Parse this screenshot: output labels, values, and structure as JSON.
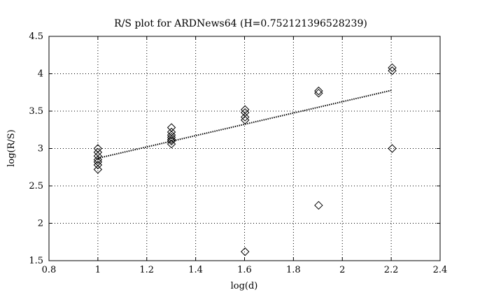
{
  "chart_data": {
    "type": "scatter",
    "title": "R/S plot for ARDNews64 (H=0.752121396528239)",
    "xlabel": "log(d)",
    "ylabel": "log(R/S)",
    "xlim": [
      0.8,
      2.4
    ],
    "ylim": [
      1.5,
      4.5
    ],
    "x_ticks": [
      0.8,
      1,
      1.2,
      1.4,
      1.6,
      1.8,
      2,
      2.2,
      2.4
    ],
    "x_tick_labels": [
      "0.8",
      "1",
      "1.2",
      "1.4",
      "1.6",
      "1.8",
      "2",
      "2.2",
      "2.4"
    ],
    "y_ticks": [
      1.5,
      2,
      2.5,
      3,
      3.5,
      4,
      4.5
    ],
    "y_tick_labels": [
      "1.5",
      "2",
      "2.5",
      "3",
      "3.5",
      "4",
      "4.5"
    ],
    "grid": true,
    "grid_style": "dotted",
    "marker": "diamond",
    "series": [
      {
        "kind": "scatter",
        "points": [
          [
            1.0,
            3.0
          ],
          [
            1.0,
            2.95
          ],
          [
            1.0,
            2.9
          ],
          [
            1.0,
            2.85
          ],
          [
            1.0,
            2.82
          ],
          [
            1.0,
            2.78
          ],
          [
            1.0,
            2.72
          ],
          [
            1.301,
            3.28
          ],
          [
            1.301,
            3.22
          ],
          [
            1.301,
            3.18
          ],
          [
            1.301,
            3.15
          ],
          [
            1.301,
            3.12
          ],
          [
            1.301,
            3.1
          ],
          [
            1.301,
            3.06
          ],
          [
            1.602,
            3.52
          ],
          [
            1.602,
            3.48
          ],
          [
            1.602,
            3.42
          ],
          [
            1.602,
            3.38
          ],
          [
            1.602,
            1.62
          ],
          [
            1.903,
            3.77
          ],
          [
            1.903,
            3.74
          ],
          [
            1.903,
            2.24
          ],
          [
            2.204,
            4.08
          ],
          [
            2.204,
            4.04
          ],
          [
            2.204,
            3.0
          ]
        ]
      },
      {
        "kind": "fit-line",
        "x": [
          1.0,
          2.204
        ],
        "y": [
          2.87,
          3.78
        ]
      }
    ]
  }
}
